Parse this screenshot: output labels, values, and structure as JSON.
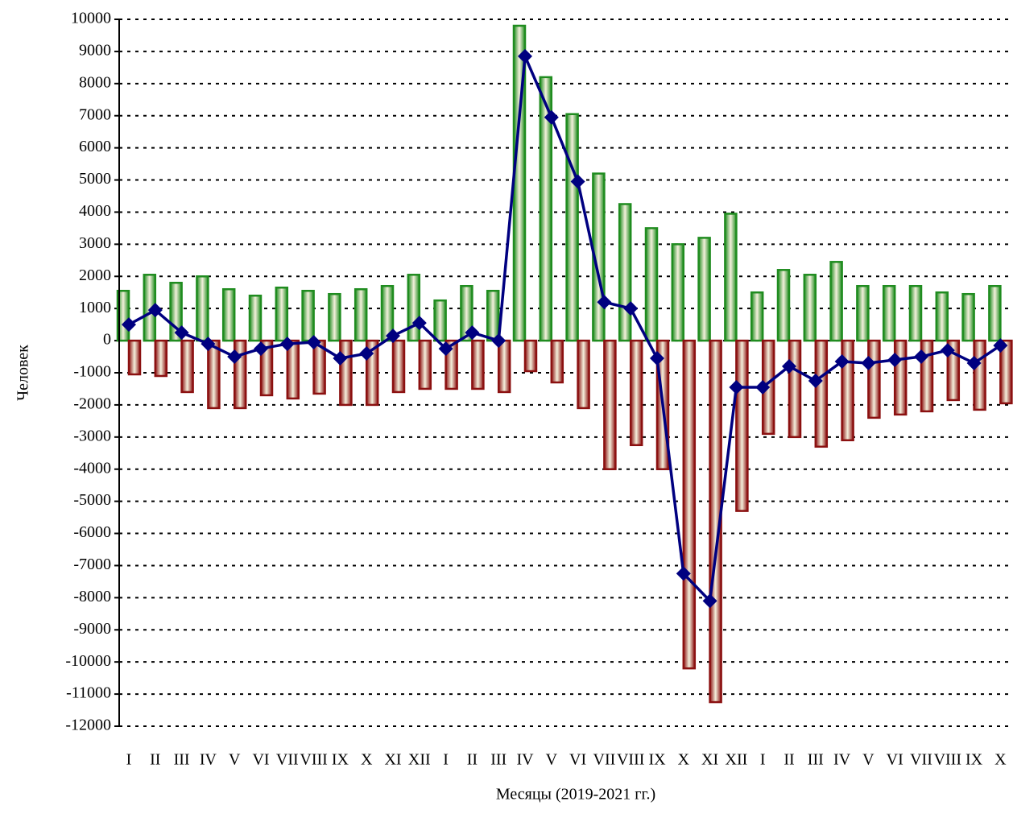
{
  "chart_data": {
    "type": "bar_line",
    "x_label": "Месяцы (2019-2021 гг.)",
    "y_label": "Человек",
    "categories": [
      "I",
      "II",
      "III",
      "IV",
      "V",
      "VI",
      "VII",
      "VIII",
      "IX",
      "X",
      "XI",
      "XII",
      "I",
      "II",
      "III",
      "IV",
      "V",
      "VI",
      "VII",
      "VIII",
      "IX",
      "X",
      "XI",
      "XII",
      "I",
      "II",
      "III",
      "IV",
      "V",
      "VI",
      "VII",
      "VIII",
      "IX",
      "X"
    ],
    "series": [
      {
        "type": "bar",
        "color": "#1f8c1f",
        "values": [
          1550,
          2050,
          1800,
          2000,
          1600,
          1400,
          1650,
          1550,
          1450,
          1600,
          1700,
          2050,
          1250,
          1700,
          1550,
          9800,
          8200,
          7050,
          5200,
          4250,
          3500,
          3000,
          3200,
          3950,
          1500,
          2200,
          2050,
          2450,
          1700,
          1700,
          1700,
          1500,
          1450,
          1700
        ]
      },
      {
        "type": "bar",
        "color": "#8b1010",
        "values": [
          -1050,
          -1100,
          -1600,
          -2100,
          -2100,
          -1700,
          -1800,
          -1650,
          -2000,
          -2000,
          -1600,
          -1500,
          -1500,
          -1500,
          -1600,
          -950,
          -1300,
          -2100,
          -4000,
          -3250,
          -4000,
          -10200,
          -11250,
          -5300,
          -2900,
          -3000,
          -3300,
          -3100,
          -2400,
          -2300,
          -2200,
          -1850,
          -2150,
          -1950
        ]
      },
      {
        "type": "line",
        "color": "#000080",
        "values": [
          500,
          950,
          250,
          -100,
          -500,
          -250,
          -100,
          -50,
          -550,
          -400,
          150,
          550,
          -250,
          250,
          0,
          8850,
          6950,
          4950,
          1200,
          1000,
          -550,
          -7250,
          -8100,
          -1450,
          -1450,
          -800,
          -1250,
          -650,
          -700,
          -600,
          -500,
          -300,
          -700,
          -150
        ]
      }
    ],
    "ylim": [
      -12000,
      10000
    ],
    "yticks": [
      -12000,
      -11000,
      -10000,
      -9000,
      -8000,
      -7000,
      -6000,
      -5000,
      -4000,
      -3000,
      -2000,
      -1000,
      0,
      1000,
      2000,
      3000,
      4000,
      5000,
      6000,
      7000,
      8000,
      9000,
      10000
    ],
    "grid": true
  }
}
